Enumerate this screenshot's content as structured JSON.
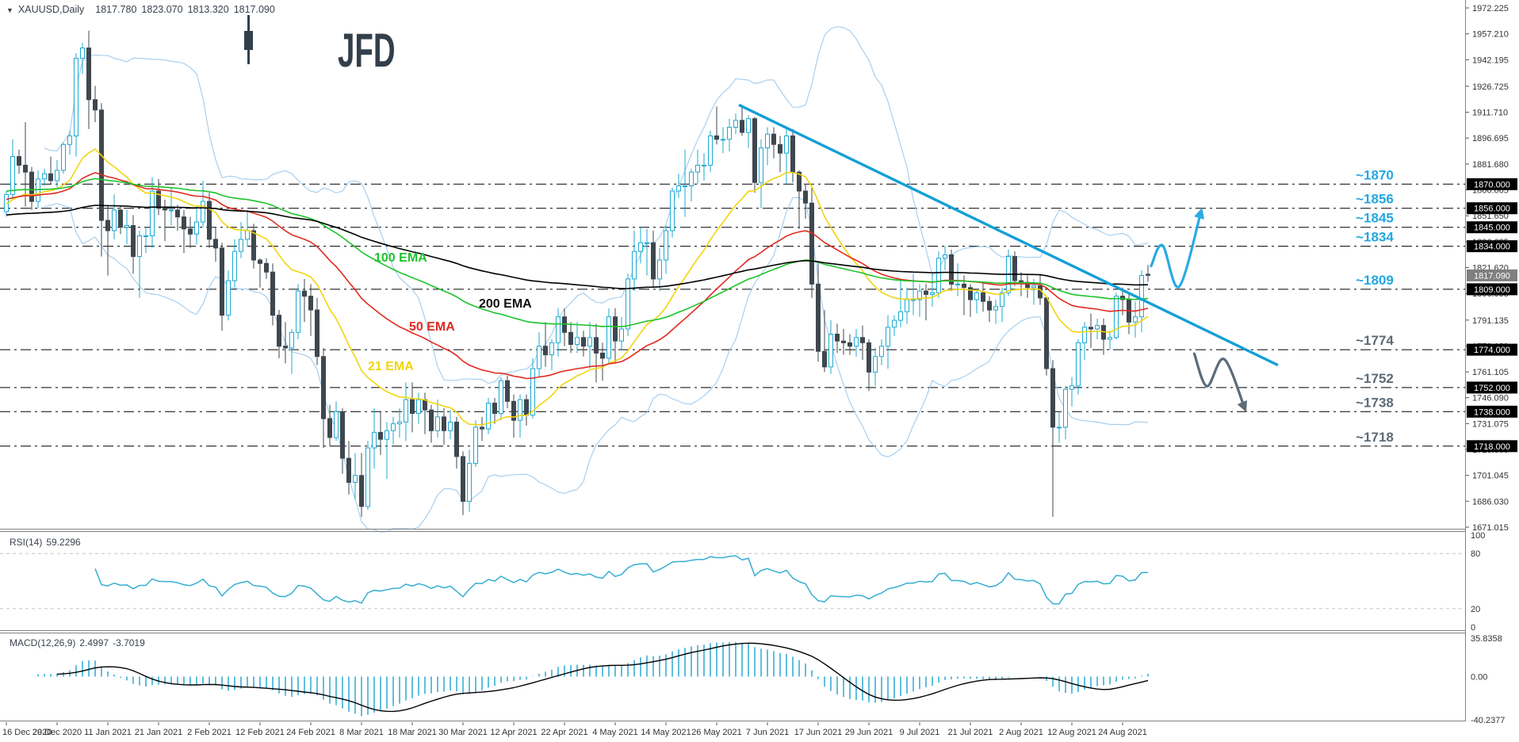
{
  "title_bar": {
    "dropdown_icon": "▼",
    "symbol": "XAUUSD,Daily",
    "open": "1817.780",
    "high": "1823.070",
    "low": "1813.320",
    "close": "1817.090"
  },
  "logo": {
    "text": "JFD"
  },
  "indicators": {
    "rsi": {
      "name": "RSI(14)",
      "value": "59.2296"
    },
    "macd": {
      "name": "MACD(12,26,9)",
      "value_main": "2.4997",
      "value_signal": "-3.7019"
    }
  },
  "chart_data": {
    "type": "candlestick",
    "symbol": "XAUUSD",
    "timeframe": "Daily",
    "price_axis": {
      "ticks": [
        1972.225,
        1957.21,
        1942.195,
        1926.725,
        1911.71,
        1896.695,
        1881.68,
        1866.665,
        1851.65,
        1836.635,
        1821.62,
        1806.605,
        1791.135,
        1776.12,
        1761.105,
        1746.09,
        1731.075,
        1716.06,
        1701.045,
        1686.03,
        1671.015
      ],
      "top_value": 1972.225,
      "bottom_value": 1671.015,
      "current": {
        "label": "1817.090",
        "price": 1817.09,
        "box_color": "#7f7f7f"
      }
    },
    "levels": [
      {
        "price": 1870,
        "label": "~1870",
        "box": "1870.000",
        "label_color": "#22a7e0"
      },
      {
        "price": 1856,
        "label": "~1856",
        "box": "1856.000",
        "label_color": "#22a7e0"
      },
      {
        "price": 1845,
        "label": "~1845",
        "box": "1845.000",
        "label_color": "#22a7e0"
      },
      {
        "price": 1834,
        "label": "~1834",
        "box": "1834.000",
        "label_color": "#22a7e0"
      },
      {
        "price": 1809,
        "label": "~1809",
        "box": "1809.000",
        "label_color": "#22a7e0"
      },
      {
        "price": 1774,
        "label": "~1774",
        "box": "1774.000",
        "label_color": "#5c6b78"
      },
      {
        "price": 1752,
        "label": "~1752",
        "box": "1752.000",
        "label_color": "#5c6b78"
      },
      {
        "price": 1738,
        "label": "~1738",
        "box": "1738.000",
        "label_color": "#5c6b78"
      },
      {
        "price": 1718,
        "label": "~1718",
        "box": "1718.000",
        "label_color": "#5c6b78"
      }
    ],
    "date_ticks": [
      {
        "label": "16 Dec 2020",
        "bar": 0
      },
      {
        "label": "29 Dec 2020",
        "bar": 8
      },
      {
        "label": "11 Jan 2021",
        "bar": 16
      },
      {
        "label": "21 Jan 2021",
        "bar": 24
      },
      {
        "label": "2 Feb 2021",
        "bar": 32
      },
      {
        "label": "12 Feb 2021",
        "bar": 40
      },
      {
        "label": "24 Feb 2021",
        "bar": 48
      },
      {
        "label": "8 Mar 2021",
        "bar": 56
      },
      {
        "label": "18 Mar 2021",
        "bar": 64
      },
      {
        "label": "30 Mar 2021",
        "bar": 72
      },
      {
        "label": "12 Apr 2021",
        "bar": 80
      },
      {
        "label": "22 Apr 2021",
        "bar": 88
      },
      {
        "label": "4 May 2021",
        "bar": 96
      },
      {
        "label": "14 May 2021",
        "bar": 104
      },
      {
        "label": "26 May 2021",
        "bar": 112
      },
      {
        "label": "7 Jun 2021",
        "bar": 120
      },
      {
        "label": "17 Jun 2021",
        "bar": 128
      },
      {
        "label": "29 Jun 2021",
        "bar": 136
      },
      {
        "label": "9 Jul 2021",
        "bar": 144
      },
      {
        "label": "21 Jul 2021",
        "bar": 152
      },
      {
        "label": "2 Aug 2021",
        "bar": 160
      },
      {
        "label": "12 Aug 2021",
        "bar": 168
      },
      {
        "label": "24 Aug 2021",
        "bar": 176
      }
    ],
    "candles": [
      [
        1854,
        1866,
        1851,
        1864
      ],
      [
        1864,
        1896,
        1861,
        1886
      ],
      [
        1886,
        1890,
        1876,
        1881
      ],
      [
        1881,
        1906,
        1857,
        1877
      ],
      [
        1877,
        1880,
        1855,
        1860
      ],
      [
        1860,
        1878,
        1856,
        1873
      ],
      [
        1873,
        1879,
        1869,
        1876
      ],
      [
        1876,
        1886,
        1870,
        1872
      ],
      [
        1872,
        1884,
        1868,
        1878
      ],
      [
        1878,
        1894,
        1876,
        1893
      ],
      [
        1893,
        1901,
        1887,
        1898
      ],
      [
        1898,
        1946,
        1886,
        1943
      ],
      [
        1943,
        1952,
        1934,
        1949
      ],
      [
        1949,
        1959,
        1902,
        1919
      ],
      [
        1919,
        1927,
        1906,
        1913
      ],
      [
        1913,
        1917,
        1828,
        1849
      ],
      [
        1849,
        1858,
        1817,
        1843
      ],
      [
        1843,
        1864,
        1838,
        1855
      ],
      [
        1855,
        1857,
        1841,
        1845
      ],
      [
        1845,
        1855,
        1835,
        1846
      ],
      [
        1846,
        1852,
        1818,
        1828
      ],
      [
        1828,
        1843,
        1804,
        1840
      ],
      [
        1840,
        1845,
        1830,
        1840
      ],
      [
        1840,
        1874,
        1833,
        1866
      ],
      [
        1866,
        1873,
        1852,
        1856
      ],
      [
        1856,
        1861,
        1837,
        1855
      ],
      [
        1855,
        1868,
        1846,
        1855
      ],
      [
        1855,
        1858,
        1843,
        1851
      ],
      [
        1851,
        1855,
        1830,
        1844
      ],
      [
        1844,
        1851,
        1833,
        1841
      ],
      [
        1841,
        1857,
        1835,
        1848
      ],
      [
        1848,
        1872,
        1845,
        1860
      ],
      [
        1860,
        1865,
        1833,
        1838
      ],
      [
        1838,
        1845,
        1825,
        1833
      ],
      [
        1833,
        1836,
        1785,
        1794
      ],
      [
        1794,
        1820,
        1791,
        1814
      ],
      [
        1814,
        1838,
        1810,
        1831
      ],
      [
        1831,
        1848,
        1827,
        1838
      ],
      [
        1838,
        1855,
        1834,
        1843
      ],
      [
        1843,
        1847,
        1821,
        1826
      ],
      [
        1826,
        1827,
        1810,
        1824
      ],
      [
        1824,
        1827,
        1815,
        1819
      ],
      [
        1819,
        1824,
        1788,
        1794
      ],
      [
        1794,
        1797,
        1769,
        1776
      ],
      [
        1776,
        1790,
        1766,
        1775
      ],
      [
        1775,
        1786,
        1760,
        1784
      ],
      [
        1784,
        1812,
        1780,
        1808
      ],
      [
        1808,
        1815,
        1790,
        1805
      ],
      [
        1805,
        1812,
        1782,
        1797
      ],
      [
        1797,
        1804,
        1765,
        1770
      ],
      [
        1770,
        1775,
        1717,
        1734
      ],
      [
        1734,
        1742,
        1718,
        1723
      ],
      [
        1723,
        1744,
        1721,
        1738
      ],
      [
        1738,
        1740,
        1702,
        1711
      ],
      [
        1711,
        1721,
        1690,
        1697
      ],
      [
        1697,
        1714,
        1687,
        1701
      ],
      [
        1701,
        1714,
        1677,
        1683
      ],
      [
        1683,
        1721,
        1681,
        1717
      ],
      [
        1717,
        1740,
        1705,
        1726
      ],
      [
        1726,
        1738,
        1713,
        1722
      ],
      [
        1722,
        1732,
        1699,
        1727
      ],
      [
        1727,
        1735,
        1719,
        1731
      ],
      [
        1731,
        1740,
        1723,
        1732
      ],
      [
        1732,
        1755,
        1721,
        1745
      ],
      [
        1745,
        1755,
        1726,
        1737
      ],
      [
        1737,
        1749,
        1731,
        1745
      ],
      [
        1745,
        1749,
        1725,
        1739
      ],
      [
        1739,
        1742,
        1720,
        1727
      ],
      [
        1727,
        1745,
        1723,
        1735
      ],
      [
        1735,
        1740,
        1719,
        1727
      ],
      [
        1727,
        1739,
        1722,
        1732
      ],
      [
        1732,
        1735,
        1705,
        1712
      ],
      [
        1712,
        1715,
        1678,
        1686
      ],
      [
        1686,
        1716,
        1680,
        1708
      ],
      [
        1708,
        1733,
        1706,
        1729
      ],
      [
        1729,
        1735,
        1721,
        1728
      ],
      [
        1728,
        1746,
        1725,
        1743
      ],
      [
        1743,
        1746,
        1731,
        1737
      ],
      [
        1737,
        1758,
        1733,
        1756
      ],
      [
        1756,
        1759,
        1740,
        1744
      ],
      [
        1744,
        1748,
        1723,
        1733
      ],
      [
        1733,
        1748,
        1723,
        1745
      ],
      [
        1745,
        1748,
        1730,
        1736
      ],
      [
        1736,
        1769,
        1734,
        1763
      ],
      [
        1763,
        1784,
        1758,
        1776
      ],
      [
        1776,
        1790,
        1764,
        1771
      ],
      [
        1771,
        1780,
        1762,
        1778
      ],
      [
        1778,
        1798,
        1770,
        1793
      ],
      [
        1793,
        1798,
        1776,
        1784
      ],
      [
        1784,
        1790,
        1772,
        1777
      ],
      [
        1777,
        1790,
        1772,
        1781
      ],
      [
        1781,
        1785,
        1770,
        1776
      ],
      [
        1776,
        1790,
        1763,
        1781
      ],
      [
        1781,
        1789,
        1755,
        1772
      ],
      [
        1772,
        1778,
        1756,
        1769
      ],
      [
        1769,
        1798,
        1766,
        1793
      ],
      [
        1793,
        1798,
        1766,
        1779
      ],
      [
        1779,
        1793,
        1774,
        1786
      ],
      [
        1786,
        1818,
        1782,
        1815
      ],
      [
        1815,
        1843,
        1808,
        1831
      ],
      [
        1831,
        1845,
        1824,
        1836
      ],
      [
        1836,
        1844,
        1817,
        1836
      ],
      [
        1836,
        1843,
        1810,
        1815
      ],
      [
        1815,
        1833,
        1808,
        1826
      ],
      [
        1826,
        1846,
        1818,
        1843
      ],
      [
        1843,
        1868,
        1839,
        1866
      ],
      [
        1866,
        1876,
        1862,
        1869
      ],
      [
        1869,
        1890,
        1851,
        1869
      ],
      [
        1869,
        1879,
        1860,
        1877
      ],
      [
        1877,
        1890,
        1870,
        1881
      ],
      [
        1881,
        1888,
        1872,
        1881
      ],
      [
        1881,
        1901,
        1877,
        1898
      ],
      [
        1898,
        1915,
        1893,
        1896
      ],
      [
        1896,
        1903,
        1888,
        1896
      ],
      [
        1896,
        1908,
        1889,
        1903
      ],
      [
        1903,
        1911,
        1899,
        1907
      ],
      [
        1907,
        1916,
        1898,
        1900
      ],
      [
        1900,
        1910,
        1891,
        1908
      ],
      [
        1908,
        1909,
        1865,
        1871
      ],
      [
        1871,
        1896,
        1856,
        1891
      ],
      [
        1891,
        1903,
        1881,
        1899
      ],
      [
        1899,
        1903,
        1885,
        1893
      ],
      [
        1893,
        1898,
        1877,
        1888
      ],
      [
        1888,
        1903,
        1870,
        1898
      ],
      [
        1898,
        1902,
        1871,
        1877
      ],
      [
        1877,
        1878,
        1844,
        1866
      ],
      [
        1866,
        1870,
        1850,
        1859
      ],
      [
        1859,
        1869,
        1804,
        1812
      ],
      [
        1812,
        1825,
        1767,
        1773
      ],
      [
        1773,
        1797,
        1761,
        1764
      ],
      [
        1764,
        1791,
        1760,
        1783
      ],
      [
        1783,
        1789,
        1772,
        1779
      ],
      [
        1779,
        1786,
        1771,
        1778
      ],
      [
        1778,
        1783,
        1771,
        1776
      ],
      [
        1776,
        1786,
        1770,
        1781
      ],
      [
        1781,
        1788,
        1768,
        1778
      ],
      [
        1778,
        1780,
        1750,
        1761
      ],
      [
        1761,
        1775,
        1753,
        1770
      ],
      [
        1770,
        1780,
        1765,
        1776
      ],
      [
        1776,
        1794,
        1763,
        1787
      ],
      [
        1787,
        1794,
        1782,
        1791
      ],
      [
        1791,
        1815,
        1787,
        1796
      ],
      [
        1796,
        1810,
        1789,
        1803
      ],
      [
        1803,
        1818,
        1794,
        1803
      ],
      [
        1803,
        1812,
        1793,
        1808
      ],
      [
        1808,
        1812,
        1791,
        1806
      ],
      [
        1806,
        1818,
        1799,
        1807
      ],
      [
        1807,
        1831,
        1804,
        1827
      ],
      [
        1827,
        1834,
        1820,
        1829
      ],
      [
        1829,
        1832,
        1808,
        1812
      ],
      [
        1812,
        1824,
        1805,
        1812
      ],
      [
        1812,
        1817,
        1794,
        1810
      ],
      [
        1810,
        1812,
        1793,
        1803
      ],
      [
        1803,
        1809,
        1795,
        1807
      ],
      [
        1807,
        1813,
        1796,
        1802
      ],
      [
        1802,
        1805,
        1790,
        1797
      ],
      [
        1797,
        1803,
        1789,
        1799
      ],
      [
        1799,
        1810,
        1790,
        1807
      ],
      [
        1807,
        1832,
        1805,
        1828
      ],
      [
        1828,
        1831,
        1811,
        1814
      ],
      [
        1814,
        1819,
        1805,
        1813
      ],
      [
        1813,
        1817,
        1804,
        1810
      ],
      [
        1810,
        1815,
        1800,
        1811
      ],
      [
        1811,
        1818,
        1800,
        1804
      ],
      [
        1804,
        1805,
        1759,
        1763
      ],
      [
        1763,
        1768,
        1677,
        1729
      ],
      [
        1729,
        1738,
        1720,
        1729
      ],
      [
        1729,
        1753,
        1722,
        1751
      ],
      [
        1751,
        1758,
        1741,
        1753
      ],
      [
        1753,
        1780,
        1748,
        1778
      ],
      [
        1778,
        1790,
        1768,
        1787
      ],
      [
        1787,
        1795,
        1775,
        1786
      ],
      [
        1786,
        1792,
        1780,
        1788
      ],
      [
        1788,
        1792,
        1771,
        1780
      ],
      [
        1780,
        1785,
        1774,
        1781
      ],
      [
        1781,
        1807,
        1780,
        1805
      ],
      [
        1805,
        1810,
        1794,
        1803
      ],
      [
        1803,
        1807,
        1783,
        1790
      ],
      [
        1790,
        1802,
        1781,
        1793
      ],
      [
        1793,
        1820,
        1784,
        1817
      ],
      [
        1817.78,
        1823.07,
        1813.32,
        1817.09
      ]
    ],
    "candle_colors": {
      "up_stroke": "#1ea8d2",
      "up_fill": "#ffffff",
      "down": "#3f474e"
    },
    "emas": [
      {
        "period": 21,
        "label": "21 EMA",
        "color": "#f2d40e",
        "seed": 1858,
        "label_pos": {
          "bar": 57,
          "price": 1762
        }
      },
      {
        "period": 50,
        "label": "50 EMA",
        "color": "#e02a20",
        "seed": 1861,
        "label_pos": {
          "bar": 63.5,
          "price": 1785
        }
      },
      {
        "period": 100,
        "label": "100 EMA",
        "color": "#1dc32b",
        "seed": 1866,
        "label_pos": {
          "bar": 58,
          "price": 1825
        }
      },
      {
        "period": 200,
        "label": "200 EMA",
        "color": "#000000",
        "seed": 1852,
        "label_pos": {
          "bar": 74.5,
          "price": 1798.5
        }
      }
    ],
    "bollinger": {
      "period": 20,
      "deviation": 2,
      "color": "#a8cfef"
    },
    "trendline": {
      "color": "#139fd7",
      "from": {
        "bar": 115.5,
        "price": 1916
      },
      "to": {
        "bar": 200.5,
        "price": 1765
      }
    },
    "arrows": [
      {
        "name": "projection-up-arrow",
        "color": "#29abe2",
        "points": [
          [
            180.5,
            1822.5
          ],
          [
            182.3,
            1834.5
          ],
          [
            184.9,
            1810.5
          ],
          [
            188.4,
            1854.5
          ]
        ]
      },
      {
        "name": "projection-down-arrow",
        "color": "#5c6b78",
        "points": [
          [
            187.3,
            1771.7
          ],
          [
            189.3,
            1752.8
          ],
          [
            192.0,
            1768.5
          ],
          [
            195.3,
            1739.5
          ]
        ]
      }
    ],
    "rsi": {
      "period": 14,
      "color": "#36aed2",
      "ticks": [
        "100",
        "80",
        "20",
        "0"
      ],
      "tick_values": [
        100,
        80,
        20,
        0
      ],
      "guides": [
        80,
        20
      ],
      "range": [
        0,
        100
      ]
    },
    "macd": {
      "fast": 12,
      "slow": 26,
      "signal": 9,
      "hist_color": "#2aa9d2",
      "line_color": "#000000",
      "ticks": [
        "35.8358",
        "0.00",
        "-40.2377"
      ],
      "tick_values": [
        35.8358,
        0.0,
        -40.2377
      ],
      "range": [
        -40.2377,
        35.8358
      ]
    }
  }
}
